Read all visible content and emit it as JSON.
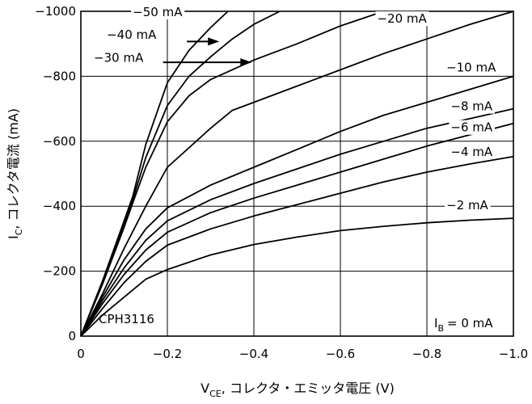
{
  "chart_data": {
    "type": "line",
    "title": "",
    "xlabel": "V",
    "xlabel_sub": "CE",
    "xlabel_rest": ", コレクタ・エミッタ電圧 (V)",
    "ylabel": "I",
    "ylabel_sub": "C",
    "ylabel_rest": ", コレクタ電流 (mA)",
    "xlim": [
      0,
      -1.0
    ],
    "ylim": [
      0,
      -1000
    ],
    "grid": true,
    "x_ticks": [
      0,
      -0.2,
      -0.4,
      -0.6,
      -0.8,
      -1.0
    ],
    "x_tick_labels": [
      "0",
      "−0.2",
      "−0.4",
      "−0.6",
      "−0.8",
      "−1.0"
    ],
    "y_ticks": [
      0,
      -200,
      -400,
      -600,
      -800,
      -1000
    ],
    "y_tick_labels": [
      "0",
      "−200",
      "−400",
      "−600",
      "−800",
      "−1000"
    ],
    "device": "CPH3116",
    "ib_note": "= 0 mA",
    "ib_note_main": "I",
    "ib_note_sub": "B",
    "series": [
      {
        "name": "−2 mA",
        "x": [
          0,
          -0.05,
          -0.1,
          -0.15,
          -0.2,
          -0.3,
          -0.4,
          -0.5,
          -0.6,
          -0.7,
          -0.8,
          -0.9,
          -1.0
        ],
        "y": [
          0,
          -65,
          -120,
          -175,
          -205,
          -250,
          -282,
          -305,
          -325,
          -338,
          -349,
          -357,
          -363
        ]
      },
      {
        "name": "−4 mA",
        "x": [
          0,
          -0.05,
          -0.1,
          -0.15,
          -0.2,
          -0.3,
          -0.4,
          -0.5,
          -0.6,
          -0.7,
          -0.8,
          -0.9,
          -1.0
        ],
        "y": [
          0,
          -85,
          -165,
          -230,
          -280,
          -330,
          -370,
          -405,
          -440,
          -475,
          -505,
          -530,
          -553
        ]
      },
      {
        "name": "−6 mA",
        "x": [
          0,
          -0.05,
          -0.1,
          -0.15,
          -0.2,
          -0.3,
          -0.4,
          -0.5,
          -0.6,
          -0.7,
          -0.8,
          -0.9,
          -1.0
        ],
        "y": [
          0,
          -100,
          -190,
          -265,
          -320,
          -380,
          -425,
          -465,
          -505,
          -545,
          -585,
          -620,
          -655
        ]
      },
      {
        "name": "−8 mA",
        "x": [
          0,
          -0.05,
          -0.1,
          -0.15,
          -0.2,
          -0.3,
          -0.4,
          -0.5,
          -0.6,
          -0.7,
          -0.8,
          -0.9,
          -1.0
        ],
        "y": [
          0,
          -110,
          -210,
          -295,
          -355,
          -420,
          -470,
          -515,
          -560,
          -600,
          -640,
          -670,
          -700
        ]
      },
      {
        "name": "−10 mA",
        "x": [
          0,
          -0.05,
          -0.1,
          -0.15,
          -0.2,
          -0.3,
          -0.4,
          -0.5,
          -0.6,
          -0.7,
          -0.8,
          -0.9,
          -1.0
        ],
        "y": [
          0,
          -120,
          -235,
          -330,
          -395,
          -465,
          -520,
          -575,
          -630,
          -680,
          -720,
          -760,
          -800
        ]
      },
      {
        "name": "−20 mA",
        "x": [
          0,
          -0.05,
          -0.1,
          -0.15,
          -0.2,
          -0.3,
          -0.35,
          -0.4,
          -0.5,
          -0.6,
          -0.7,
          -0.8,
          -0.9,
          -1.0
        ],
        "y": [
          0,
          -130,
          -270,
          -400,
          -520,
          -640,
          -695,
          -720,
          -770,
          -820,
          -870,
          -915,
          -960,
          -1000
        ]
      },
      {
        "name": "−30 mA",
        "x": [
          0,
          -0.05,
          -0.1,
          -0.12,
          -0.15,
          -0.2,
          -0.25,
          -0.3,
          -0.4,
          -0.5,
          -0.6,
          -0.7
        ],
        "y": [
          0,
          -160,
          -335,
          -410,
          -520,
          -660,
          -740,
          -790,
          -850,
          -900,
          -955,
          -1000
        ]
      },
      {
        "name": "−40 mA",
        "x": [
          0,
          -0.05,
          -0.1,
          -0.12,
          -0.15,
          -0.2,
          -0.25,
          -0.3,
          -0.35,
          -0.4,
          -0.46
        ],
        "y": [
          0,
          -165,
          -345,
          -420,
          -550,
          -710,
          -800,
          -860,
          -915,
          -960,
          -1000
        ]
      },
      {
        "name": "−50 mA",
        "x": [
          0,
          -0.05,
          -0.1,
          -0.12,
          -0.15,
          -0.2,
          -0.25,
          -0.3,
          -0.34
        ],
        "y": [
          0,
          -170,
          -355,
          -430,
          -590,
          -780,
          -880,
          -950,
          -1000
        ]
      }
    ],
    "labels": [
      {
        "text": "−50 mA",
        "x": -0.12,
        "y": -985,
        "anchor": "start"
      },
      {
        "text": "−40 mA",
        "x": -0.06,
        "y": -915,
        "anchor": "start"
      },
      {
        "text": "−30 mA",
        "x": -0.03,
        "y": -845,
        "anchor": "start"
      },
      {
        "text": "−20 mA",
        "x": -0.685,
        "y": -965,
        "anchor": "start"
      },
      {
        "text": "−10 mA",
        "x": -0.845,
        "y": -815,
        "anchor": "start"
      },
      {
        "text": "−8 mA",
        "x": -0.855,
        "y": -695,
        "anchor": "start"
      },
      {
        "text": "−6 mA",
        "x": -0.855,
        "y": -630,
        "anchor": "start"
      },
      {
        "text": "−4 mA",
        "x": -0.855,
        "y": -555,
        "anchor": "start"
      },
      {
        "text": "−2 mA",
        "x": -0.845,
        "y": -390,
        "anchor": "start"
      }
    ],
    "arrows": [
      {
        "from": [
          -0.245,
          -907
        ],
        "to": [
          -0.32,
          -907
        ]
      },
      {
        "from": [
          -0.19,
          -843
        ],
        "to": [
          -0.395,
          -843
        ]
      }
    ]
  }
}
